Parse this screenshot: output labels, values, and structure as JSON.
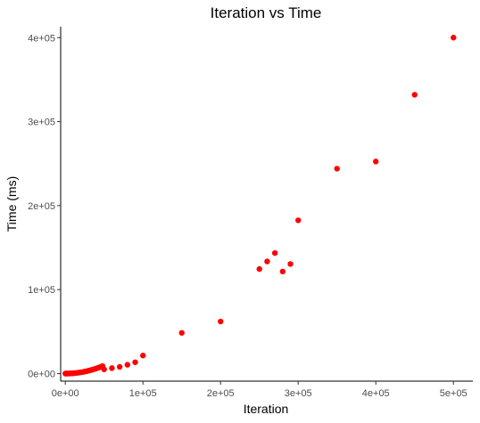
{
  "chart_data": {
    "type": "scatter",
    "title": "Iteration vs Time",
    "xlabel": "Iteration",
    "ylabel": "Time (ms)",
    "xlim": [
      -6000,
      525000
    ],
    "ylim": [
      -9000,
      413000
    ],
    "x_ticks": [
      0,
      100000,
      200000,
      300000,
      400000,
      500000
    ],
    "x_tick_labels": [
      "0e+00",
      "1e+05",
      "2e+05",
      "3e+05",
      "4e+05",
      "5e+05"
    ],
    "y_ticks": [
      0,
      100000,
      200000,
      300000,
      400000
    ],
    "y_tick_labels": [
      "0e+00",
      "1e+05",
      "2e+05",
      "3e+05",
      "4e+05"
    ],
    "grid": false,
    "legend": "none",
    "point_color": "#ff0000",
    "series": [
      {
        "x": [
          0,
          1000,
          2000,
          3000,
          4000,
          5000,
          6000,
          7000,
          8000,
          9000,
          10000,
          12000,
          14000,
          16000,
          18000,
          20000,
          22000,
          24000,
          26000,
          28000,
          30000,
          32000,
          34000,
          36000,
          38000,
          40000,
          42000,
          44000,
          46000,
          48000,
          50000,
          60000,
          70000,
          80000,
          90000,
          100000,
          150000,
          200000,
          250000,
          260000,
          270000,
          280000,
          290000,
          300000,
          350000,
          400000,
          450000,
          500000
        ],
        "y": [
          0,
          10,
          20,
          40,
          70,
          100,
          150,
          200,
          260,
          320,
          400,
          560,
          760,
          980,
          1250,
          1550,
          1850,
          2200,
          2600,
          3000,
          3450,
          3950,
          4450,
          5000,
          5550,
          6150,
          6800,
          7450,
          8150,
          8900,
          5000,
          6500,
          8000,
          10500,
          13500,
          21500,
          48500,
          62000,
          124500,
          133500,
          143500,
          121500,
          130500,
          182500,
          244000,
          252500,
          332000,
          400000
        ]
      }
    ]
  }
}
